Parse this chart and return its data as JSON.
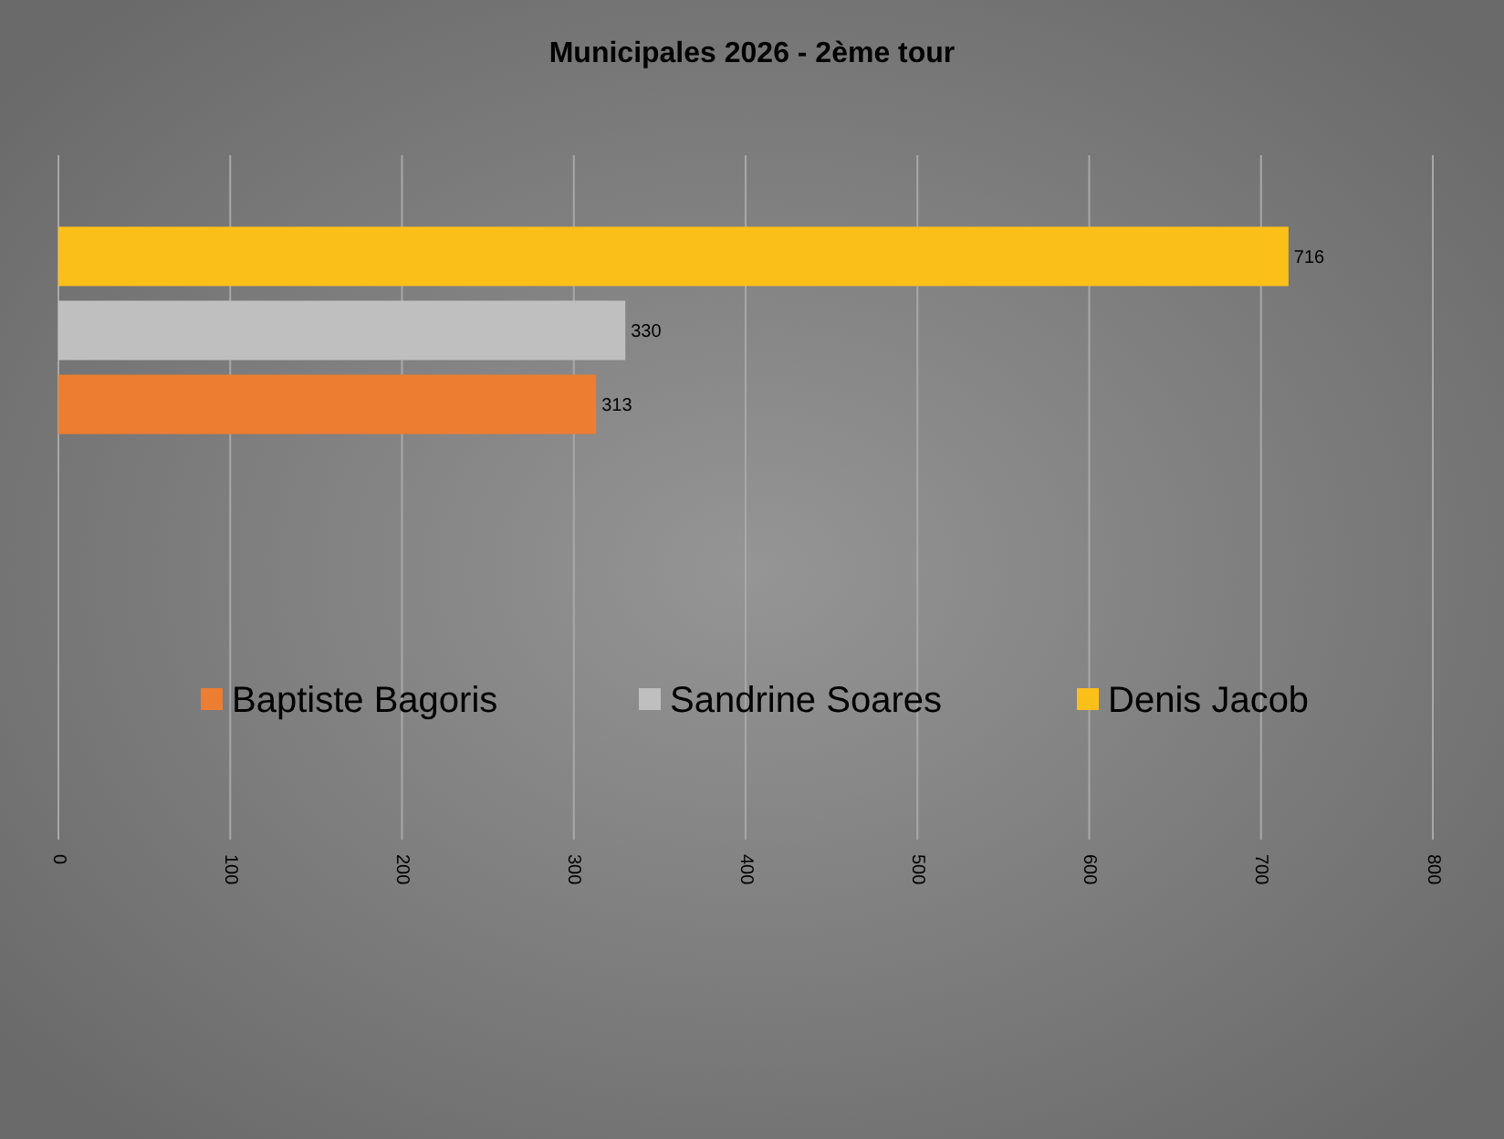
{
  "chart_data": {
    "type": "bar",
    "orientation": "horizontal",
    "title": "Municipales 2026 - 2ème tour",
    "categories": [
      null
    ],
    "series": [
      {
        "name": "Baptiste Bagoris",
        "color": "#ed7d31",
        "values": [
          313
        ]
      },
      {
        "name": "Sandrine Soares",
        "color": "#bfbfbf",
        "values": [
          330
        ]
      },
      {
        "name": "Denis Jacob",
        "color": "#fbbf1a",
        "values": [
          716
        ]
      }
    ],
    "xlim": [
      0,
      800
    ],
    "xticks": [
      0,
      100,
      200,
      300,
      400,
      500,
      600,
      700,
      800
    ],
    "grid": "x",
    "data_labels": true,
    "legend": "bottom"
  }
}
